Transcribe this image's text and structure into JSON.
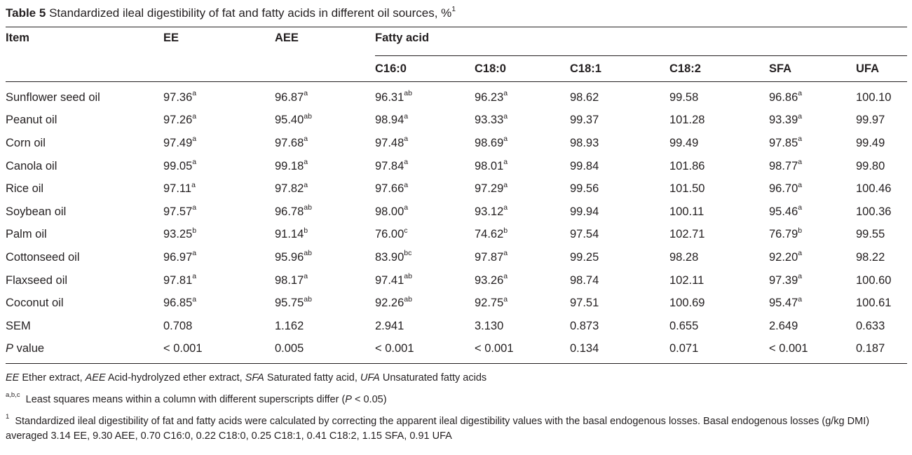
{
  "caption": {
    "label": "Table 5",
    "text": "Standardized ileal digestibility of fat and fatty acids in different oil sources, %",
    "footnote_mark": "1"
  },
  "headers": {
    "item": "Item",
    "ee": "EE",
    "aee": "AEE",
    "fatty_acid": "Fatty acid",
    "c160": "C16:0",
    "c180": "C18:0",
    "c181": "C18:1",
    "c182": "C18:2",
    "sfa": "SFA",
    "ufa": "UFA"
  },
  "rows": [
    {
      "item": "Sunflower seed oil",
      "ee": "97.36",
      "ee_s": "a",
      "aee": "96.87",
      "aee_s": "a",
      "c160": "96.31",
      "c160_s": "ab",
      "c180": "96.23",
      "c180_s": "a",
      "c181": "98.62",
      "c182": "99.58",
      "sfa": "96.86",
      "sfa_s": "a",
      "ufa": "100.10"
    },
    {
      "item": "Peanut oil",
      "ee": "97.26",
      "ee_s": "a",
      "aee": "95.40",
      "aee_s": "ab",
      "c160": "98.94",
      "c160_s": "a",
      "c180": "93.33",
      "c180_s": "a",
      "c181": "99.37",
      "c182": "101.28",
      "sfa": "93.39",
      "sfa_s": "a",
      "ufa": "99.97"
    },
    {
      "item": "Corn oil",
      "ee": "97.49",
      "ee_s": "a",
      "aee": "97.68",
      "aee_s": "a",
      "c160": "97.48",
      "c160_s": "a",
      "c180": "98.69",
      "c180_s": "a",
      "c181": "98.93",
      "c182": "99.49",
      "sfa": "97.85",
      "sfa_s": "a",
      "ufa": "99.49"
    },
    {
      "item": "Canola oil",
      "ee": "99.05",
      "ee_s": "a",
      "aee": "99.18",
      "aee_s": "a",
      "c160": "97.84",
      "c160_s": "a",
      "c180": "98.01",
      "c180_s": "a",
      "c181": "99.84",
      "c182": "101.86",
      "sfa": "98.77",
      "sfa_s": "a",
      "ufa": "99.80"
    },
    {
      "item": "Rice oil",
      "ee": "97.11",
      "ee_s": "a",
      "aee": "97.82",
      "aee_s": "a",
      "c160": "97.66",
      "c160_s": "a",
      "c180": "97.29",
      "c180_s": "a",
      "c181": "99.56",
      "c182": "101.50",
      "sfa": "96.70",
      "sfa_s": "a",
      "ufa": "100.46"
    },
    {
      "item": "Soybean oil",
      "ee": "97.57",
      "ee_s": "a",
      "aee": "96.78",
      "aee_s": "ab",
      "c160": "98.00",
      "c160_s": "a",
      "c180": "93.12",
      "c180_s": "a",
      "c181": "99.94",
      "c182": "100.11",
      "sfa": "95.46",
      "sfa_s": "a",
      "ufa": "100.36"
    },
    {
      "item": "Palm oil",
      "ee": "93.25",
      "ee_s": "b",
      "aee": "91.14",
      "aee_s": "b",
      "c160": "76.00",
      "c160_s": "c",
      "c180": "74.62",
      "c180_s": "b",
      "c181": "97.54",
      "c182": "102.71",
      "sfa": "76.79",
      "sfa_s": "b",
      "ufa": "99.55"
    },
    {
      "item": "Cottonseed oil",
      "ee": "96.97",
      "ee_s": "a",
      "aee": "95.96",
      "aee_s": "ab",
      "c160": "83.90",
      "c160_s": "bc",
      "c180": "97.87",
      "c180_s": "a",
      "c181": "99.25",
      "c182": "98.28",
      "sfa": "92.20",
      "sfa_s": "a",
      "ufa": "98.22"
    },
    {
      "item": "Flaxseed oil",
      "ee": "97.81",
      "ee_s": "a",
      "aee": "98.17",
      "aee_s": "a",
      "c160": "97.41",
      "c160_s": "ab",
      "c180": "93.26",
      "c180_s": "a",
      "c181": "98.74",
      "c182": "102.11",
      "sfa": "97.39",
      "sfa_s": "a",
      "ufa": "100.60"
    },
    {
      "item": "Coconut oil",
      "ee": "96.85",
      "ee_s": "a",
      "aee": "95.75",
      "aee_s": "ab",
      "c160": "92.26",
      "c160_s": "ab",
      "c180": "92.75",
      "c180_s": "a",
      "c181": "97.51",
      "c182": "100.69",
      "sfa": "95.47",
      "sfa_s": "a",
      "ufa": "100.61"
    },
    {
      "item": "SEM",
      "ee": "0.708",
      "ee_s": "",
      "aee": "1.162",
      "aee_s": "",
      "c160": "2.941",
      "c160_s": "",
      "c180": "3.130",
      "c180_s": "",
      "c181": "0.873",
      "c182": "0.655",
      "sfa": "2.649",
      "sfa_s": "",
      "ufa": "0.633"
    },
    {
      "item": "value",
      "item_prefix": "P",
      "ee": "< 0.001",
      "ee_s": "",
      "aee": "0.005",
      "aee_s": "",
      "c160": "< 0.001",
      "c160_s": "",
      "c180": "< 0.001",
      "c180_s": "",
      "c181": "0.134",
      "c182": "0.071",
      "sfa": "< 0.001",
      "sfa_s": "",
      "ufa": "0.187"
    }
  ],
  "notes": {
    "abbr": [
      {
        "abbr": "EE",
        "text": "Ether extract, "
      },
      {
        "abbr": "AEE",
        "text": "Acid-hydrolyzed ether extract, "
      },
      {
        "abbr": "SFA",
        "text": "Saturated fatty acid, "
      },
      {
        "abbr": "UFA",
        "text": "Unsaturated fatty acids"
      }
    ],
    "superscript_mark": "a,b,c",
    "superscript_text_1": "Least squares means within a column with different superscripts differ (",
    "superscript_p": "P",
    "superscript_text_2": " < 0.05)",
    "footnote_mark": "1",
    "footnote_text": "Standardized ileal digestibility of fat and fatty acids were calculated by correcting the apparent ileal digestibility values with the basal endogenous losses. Basal endogenous losses (g/kg DMI) averaged 3.14 EE, 9.30 AEE, 0.70 C16:0, 0.22 C18:0, 0.25 C18:1, 0.41 C18:2, 1.15 SFA, 0.91 UFA"
  }
}
